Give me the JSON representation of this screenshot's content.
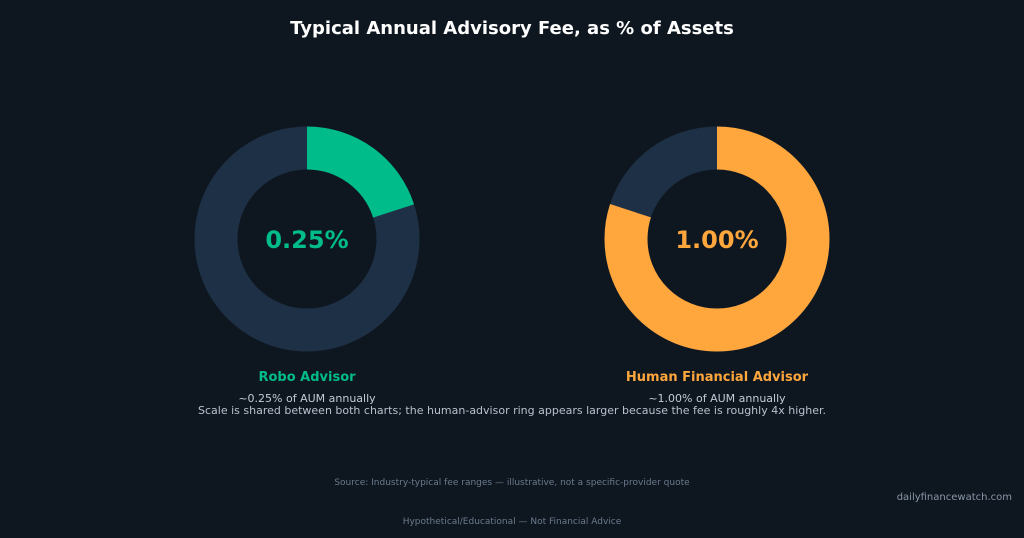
{
  "title": "Typical Annual Advisory Fee, as % of Assets",
  "colors": {
    "background": "#0e1720",
    "track": "#1e3045",
    "robo": "#00bb8a",
    "human": "#ffa63d"
  },
  "chart_data": [
    {
      "type": "pie",
      "name": "Robo Advisor",
      "value_label": "0.25%",
      "fee_pct": 0.25,
      "scale_max_pct": 1.25,
      "fill_fraction": 0.2,
      "subtitle": "~0.25% of AUM annually",
      "color": "#00bb8a"
    },
    {
      "type": "pie",
      "name": "Human Financial Advisor",
      "value_label": "1.00%",
      "fee_pct": 1.0,
      "scale_max_pct": 1.25,
      "fill_fraction": 0.8,
      "subtitle": "~1.00% of AUM annually",
      "color": "#ffa63d"
    }
  ],
  "note": "Scale is shared between both charts; the human-advisor ring appears larger because the fee is roughly 4x higher.",
  "source": "Source: Industry-typical fee ranges — illustrative, not a specific-provider quote",
  "watermark": "dailyfinancewatch.com",
  "disclaimer": "Hypothetical/Educational — Not Financial Advice"
}
